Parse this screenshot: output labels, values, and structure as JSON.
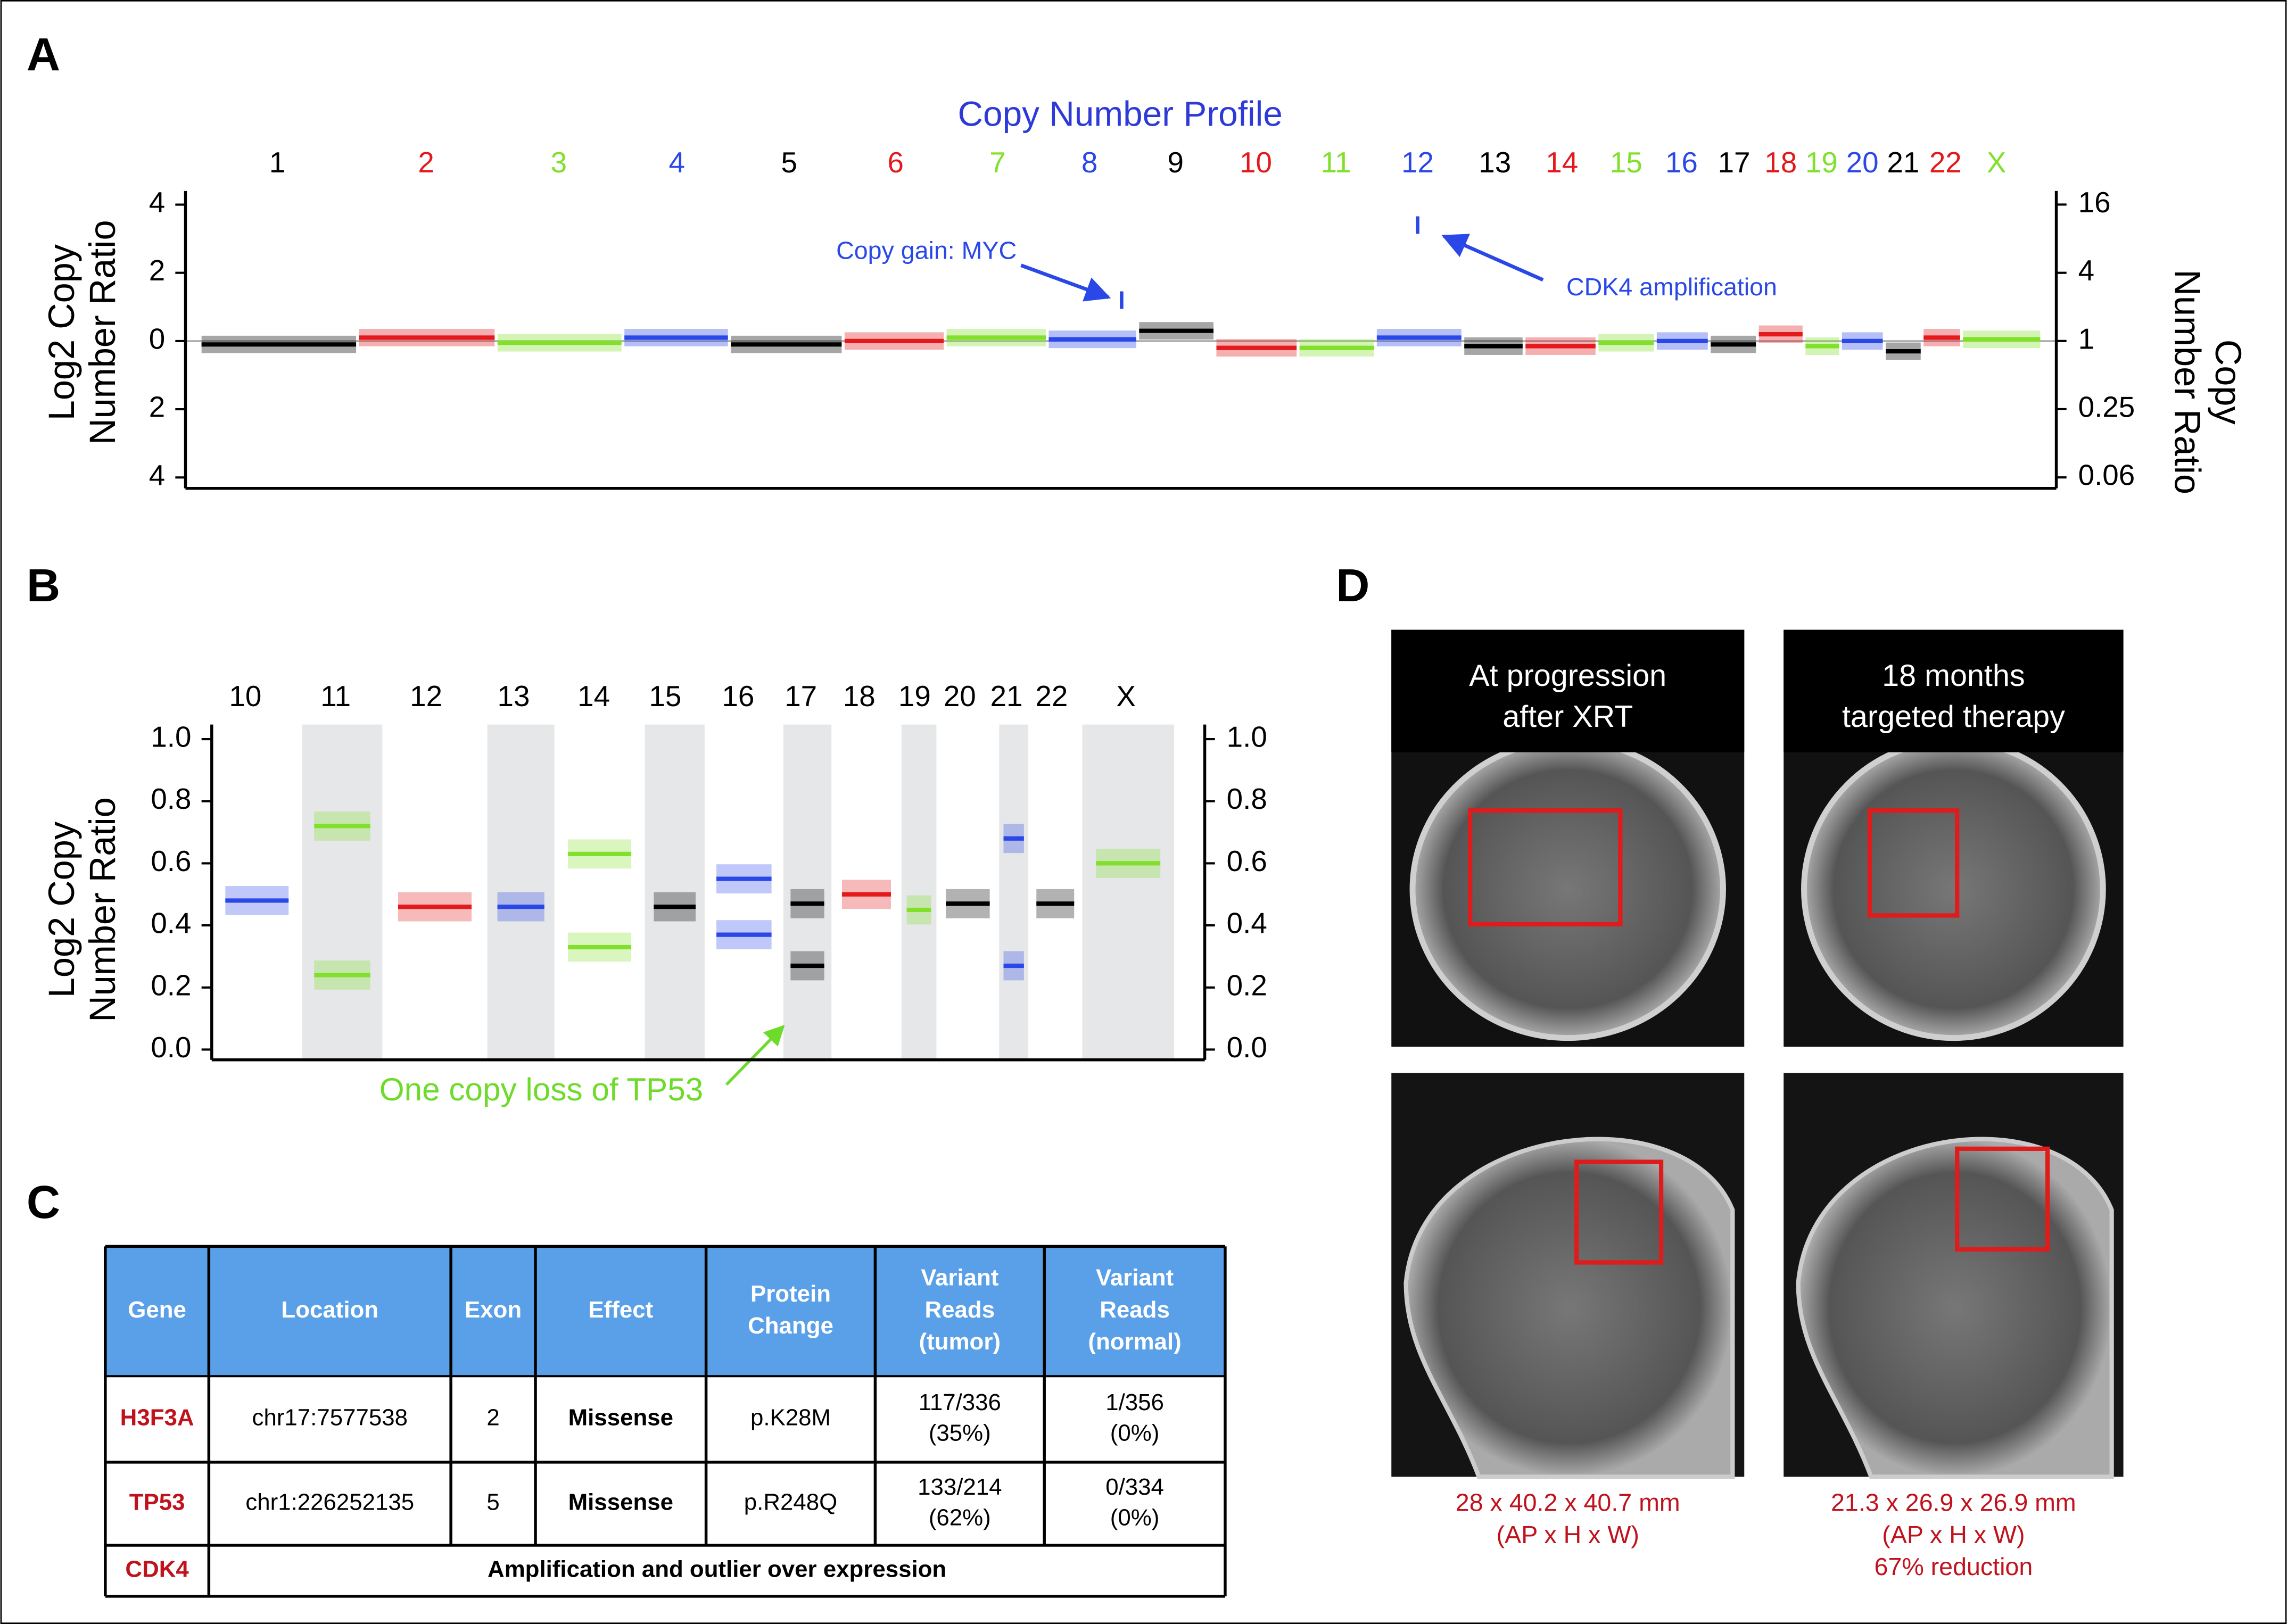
{
  "panel_labels": [
    "A",
    "B",
    "C",
    "D"
  ],
  "chart_data": [
    {
      "type": "scatter",
      "title": "Copy Number Profile",
      "title_color": "#2d3ad8",
      "y_label": [
        "Log2 Copy",
        "Number Ratio"
      ],
      "y2_label": [
        "Copy",
        "Number Ratio"
      ],
      "categories": [
        "1",
        "2",
        "3",
        "4",
        "5",
        "6",
        "7",
        "8",
        "9",
        "10",
        "11",
        "12",
        "13",
        "14",
        "15",
        "16",
        "17",
        "18",
        "19",
        "20",
        "21",
        "22",
        "X"
      ],
      "palette": [
        "#000000",
        "#e3191c",
        "#80e02b",
        "#2a48e8"
      ],
      "values": [
        -0.1,
        0.1,
        -0.05,
        0.1,
        -0.1,
        0,
        0.1,
        0.05,
        0.3,
        -0.2,
        -0.2,
        0.1,
        -0.15,
        -0.15,
        -0.05,
        0,
        -0.1,
        0.2,
        -0.15,
        0,
        -0.3,
        0.1,
        0.05
      ],
      "ylim": [
        -4.32,
        4.4
      ],
      "yticks": [
        4,
        2,
        0,
        {
          "value": -2,
          "label": "2"
        },
        {
          "value": -4,
          "label": "4"
        }
      ],
      "y2lim": [
        0.05,
        21.1
      ],
      "y2log": true,
      "y2ticks": [
        16,
        4,
        1,
        0.25,
        {
          "value": 0.0625,
          "label": "0.06"
        }
      ],
      "highlights": [
        {
          "label": "Copy gain: MYC",
          "category": "8",
          "value": 1.2,
          "color": "#2a48e8"
        },
        {
          "label": "CDK4 amplification",
          "category": "12",
          "value": 3.4,
          "color": "#2a48e8"
        }
      ]
    },
    {
      "type": "scatter",
      "y_label": [
        "Log2 Copy",
        "Number Ratio"
      ],
      "categories": [
        "10",
        "11",
        "12",
        "13",
        "14",
        "15",
        "16",
        "17",
        "18",
        "19",
        "20",
        "21",
        "22",
        "X"
      ],
      "colors": [
        "#2a48e8",
        "#80e02b",
        "#e3191c",
        "#2a48e8",
        "#80e02b",
        "#000000",
        "#2a48e8",
        "#000000",
        "#e3191c",
        "#80e02b",
        "#000000",
        "#2a48e8",
        "#000000",
        "#80e02b"
      ],
      "values": [
        [
          0.48
        ],
        [
          0.72,
          0.24
        ],
        [
          0.46
        ],
        [
          0.46
        ],
        [
          0.63,
          0.33
        ],
        [
          0.46
        ],
        [
          0.55,
          0.37
        ],
        [
          0.47,
          0.27
        ],
        [
          0.5
        ],
        [
          0.45
        ],
        [
          0.47
        ],
        [
          0.68,
          0.27
        ],
        [
          0.47
        ],
        [
          0.6
        ]
      ],
      "shaded": [
        false,
        true,
        false,
        true,
        false,
        true,
        false,
        true,
        false,
        true,
        false,
        true,
        false,
        true
      ],
      "shade_color": "#e6e7e8",
      "ylim": [
        -0.033,
        1.047
      ],
      "yticks": [
        {
          "value": 0,
          "label": "0.0"
        },
        0.2,
        0.4,
        0.6,
        0.8,
        {
          "value": 1,
          "label": "1.0"
        }
      ],
      "y2lim": [
        -0.033,
        1.047
      ],
      "y2ticks": [
        {
          "value": 0,
          "label": "0.0"
        },
        0.2,
        0.4,
        0.6,
        0.8,
        {
          "value": 1,
          "label": "1.0"
        }
      ],
      "annotation": "One copy loss of TP53",
      "annotation_color": "#6edb2a"
    }
  ],
  "table": {
    "header": [
      "Gene",
      "Location",
      "Exon",
      "Effect",
      [
        "Protein",
        "Change"
      ],
      [
        "Variant",
        "Reads",
        "(tumor)"
      ],
      [
        "Variant",
        "Reads",
        "(normal)"
      ]
    ],
    "rows": [
      [
        "H3F3A",
        "chr17:7577538",
        "2",
        "Missense",
        "p.K28M",
        [
          "117/336",
          "(35%)"
        ],
        [
          "1/356",
          "(0%)"
        ]
      ],
      [
        "TP53",
        "chr1:226252135",
        "5",
        "Missense",
        "p.R248Q",
        [
          "133/214",
          "(62%)"
        ],
        [
          "0/334",
          "(0%)"
        ]
      ],
      [
        "CDK4",
        "Amplification and outlier over expression"
      ]
    ],
    "header_color": "#5aa0e8",
    "gene_color": "#c0121c"
  },
  "images": [
    {
      "title": [
        "At progression",
        "after XRT"
      ],
      "caption": [
        "28 x 40.2 x 40.7 mm",
        "(AP x H x W)"
      ]
    },
    {
      "title": [
        "18 months",
        "targeted therapy"
      ],
      "caption": [
        "21.3 x 26.9 x 26.9 mm",
        "(AP x H x W)",
        "67% reduction"
      ]
    }
  ],
  "caption_color": "#c0121c"
}
